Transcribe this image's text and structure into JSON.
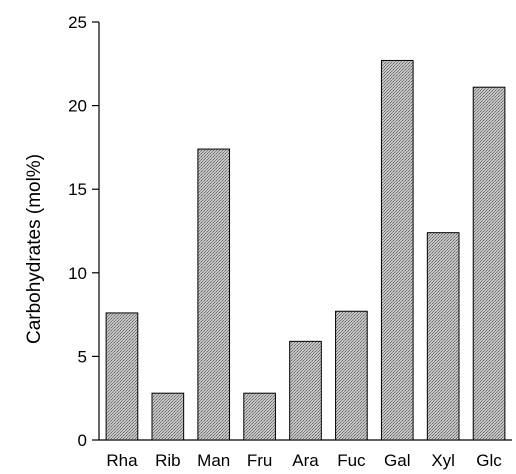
{
  "chart_data": {
    "type": "bar",
    "title": "",
    "xlabel": "",
    "ylabel": "Carbohydrates (mol%)",
    "ylim": [
      0,
      25
    ],
    "yticks": [
      0,
      5,
      10,
      15,
      20,
      25
    ],
    "grid": false,
    "legend": "none",
    "categories": [
      "Rha",
      "Rib",
      "Man",
      "Fru",
      "Ara",
      "Fuc",
      "Gal",
      "Xyl",
      "Glc"
    ],
    "values": [
      7.6,
      2.8,
      17.4,
      2.8,
      5.9,
      7.7,
      22.7,
      12.4,
      21.1
    ],
    "bar_fill": "#b8b8b8",
    "bar_stroke": "#000000"
  }
}
